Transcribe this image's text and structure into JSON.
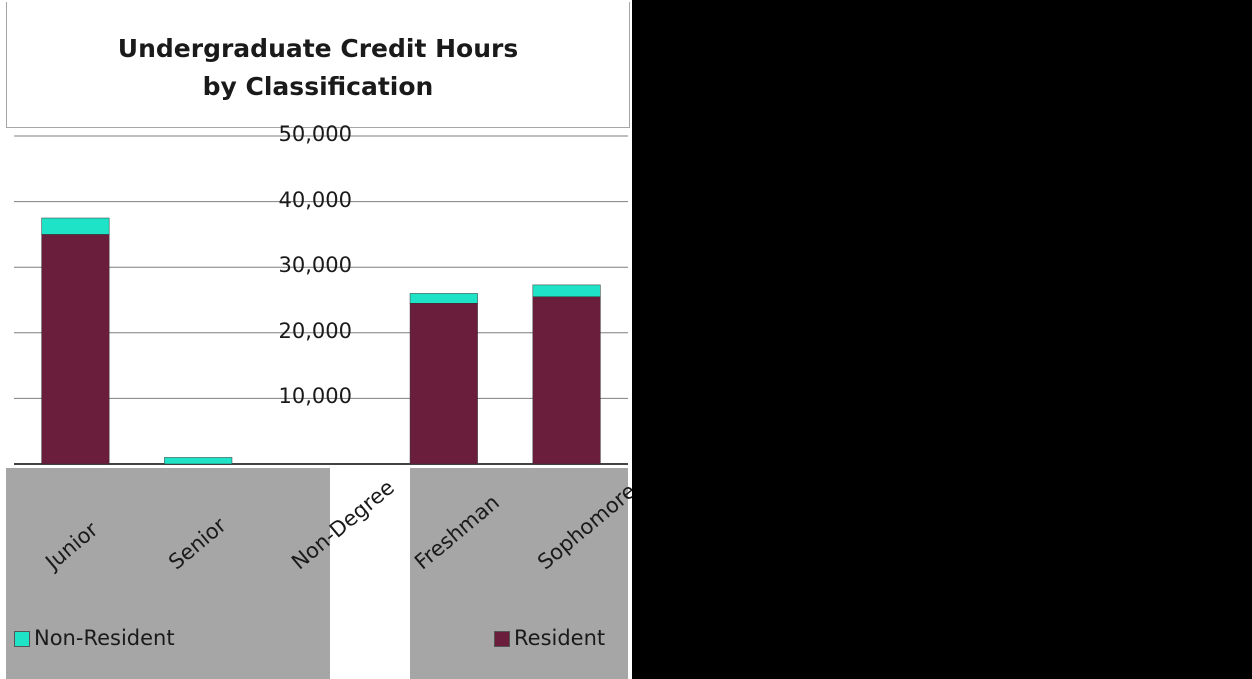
{
  "chart_data": {
    "type": "bar",
    "stacked": true,
    "title": "Undergraduate Credit Hours by Classification",
    "title_lines": [
      "Undergraduate Credit Hours",
      "by Classification"
    ],
    "categories": [
      "Junior",
      "Senior",
      "Non-Degree",
      "Freshman",
      "Sophomore"
    ],
    "series": [
      {
        "name": "Resident",
        "color": "#6b1d3c",
        "values": [
          35000,
          0,
          0,
          24500,
          25500
        ]
      },
      {
        "name": "Non-Resident",
        "color": "#1fe3c6",
        "values": [
          2500,
          1000,
          0,
          1500,
          1800
        ]
      }
    ],
    "y_ticks": [
      "10,000",
      "20,000",
      "30,000",
      "40,000",
      "50,000"
    ],
    "ylim": [
      0,
      50000
    ],
    "grid": true,
    "legend": "bottom"
  }
}
